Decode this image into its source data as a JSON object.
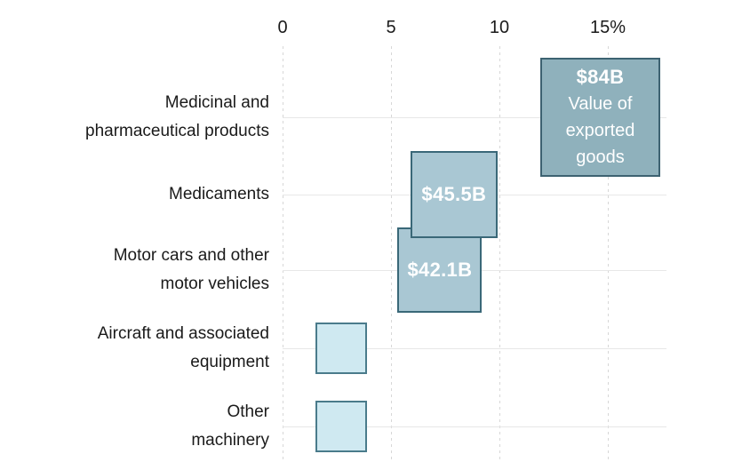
{
  "chart_data": {
    "type": "scatter",
    "marker": "square",
    "title": "",
    "x_axis": {
      "tick_labels": [
        "0",
        "5",
        "10",
        "15%"
      ],
      "tick_values": [
        0,
        5,
        10,
        15
      ],
      "range": [
        0,
        18
      ],
      "position": "top",
      "gridlines": "dashed-vertical"
    },
    "colors": {
      "dark_square_fill": "#8fb1bc",
      "dark_square_border": "#3d6271",
      "mid_square_fill": "#a9c7d3",
      "mid_square_border": "#3a6878",
      "light_square_fill": "#cfe9f1",
      "light_square_border": "#4a7b8b",
      "label_text": "#1a1a1a",
      "square_text": "#ffffff",
      "h_gridline": "#e7e7e7",
      "v_gridline": "#d7d7d7"
    },
    "rows": [
      {
        "category_lines": [
          "Medicinal and",
          "pharmaceutical products"
        ],
        "value_label": "$84B",
        "value_sublabel_lines": [
          "Value of",
          "exported",
          "goods"
        ],
        "value_billion_usd": 84,
        "x_span_pct": [
          11.9,
          17.4
        ],
        "fill": "#8fb1bc",
        "border": "#3d6271"
      },
      {
        "category_lines": [
          "Medicaments"
        ],
        "value_label": "$45.5B",
        "value_sublabel_lines": [],
        "value_billion_usd": 45.5,
        "x_span_pct": [
          5.9,
          9.9
        ],
        "fill": "#a9c7d3",
        "border": "#3a6878"
      },
      {
        "category_lines": [
          "Motor cars and other",
          "motor vehicles"
        ],
        "value_label": "$42.1B",
        "value_sublabel_lines": [],
        "value_billion_usd": 42.1,
        "x_span_pct": [
          5.3,
          9.2
        ],
        "fill": "#a9c7d3",
        "border": "#3a6878"
      },
      {
        "category_lines": [
          "Aircraft and associated",
          "equipment"
        ],
        "value_label": "",
        "value_sublabel_lines": [],
        "value_billion_usd": null,
        "x_span_pct": [
          1.5,
          3.9
        ],
        "fill": "#cfe9f1",
        "border": "#4a7b8b"
      },
      {
        "category_lines": [
          "Other",
          "machinery"
        ],
        "value_label": "",
        "value_sublabel_lines": [],
        "value_billion_usd": null,
        "x_span_pct": [
          1.5,
          3.9
        ],
        "fill": "#cfe9f1",
        "border": "#4a7b8b"
      }
    ]
  }
}
